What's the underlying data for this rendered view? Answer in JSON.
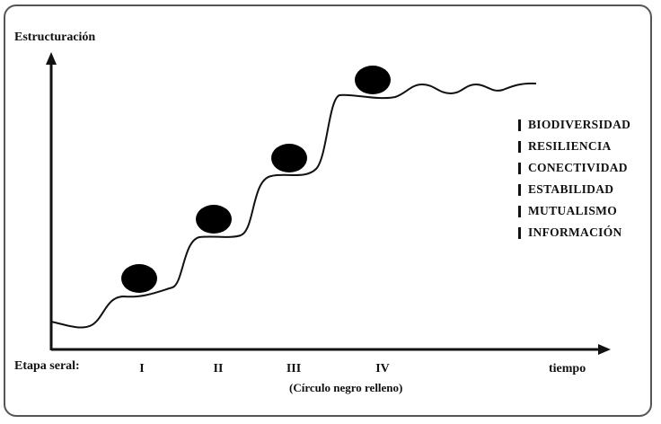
{
  "diagram": {
    "y_axis_label": "Estructuración",
    "x_axis_label": "tiempo",
    "stage_row_label": "Etapa seral:",
    "stages": [
      "I",
      "II",
      "III",
      "IV"
    ],
    "caption": "(Círculo negro relleno)",
    "legend": [
      "BIODIVERSIDAD",
      "RESILIENCIA",
      "CONECTIVIDAD",
      "ESTABILIDAD",
      "MUTUALISMO",
      "INFORMACIÓN"
    ],
    "line_color": "#111111",
    "border_color": "#555555"
  }
}
